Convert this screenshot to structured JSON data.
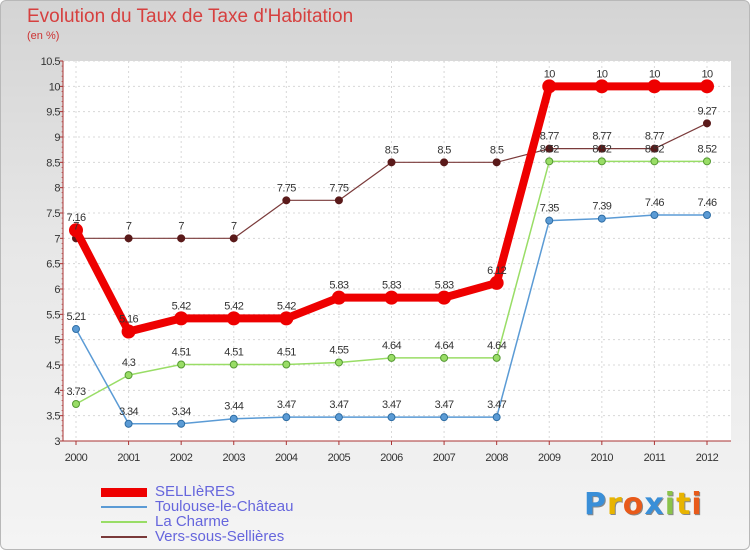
{
  "header": {
    "title": "Evolution du Taux de Taxe d'Habitation",
    "subtitle": "(en %)"
  },
  "logo": {
    "text": "Proxiti",
    "colors": [
      "#3a8fd8",
      "#e8b400",
      "#e85a1a",
      "#3a8fd8",
      "#8bc34a",
      "#e8b400",
      "#e85a1a"
    ]
  },
  "chart_data": {
    "type": "line",
    "x": [
      2000,
      2001,
      2002,
      2003,
      2004,
      2005,
      2006,
      2007,
      2008,
      2009,
      2010,
      2011,
      2012
    ],
    "ylim": [
      3,
      10.5
    ],
    "y_ticks": [
      3,
      3.5,
      4,
      4.5,
      5,
      5.5,
      6,
      6.5,
      7,
      7.5,
      8,
      8.5,
      9,
      9.5,
      10,
      10.5
    ],
    "grid": true,
    "legend_position": "bottom-left",
    "series": [
      {
        "name": "SELLIèRES",
        "color": "#ee0000",
        "values": [
          7.16,
          5.16,
          5.42,
          5.42,
          5.42,
          5.83,
          5.83,
          5.83,
          6.12,
          10,
          10,
          10,
          10
        ],
        "labels": [
          "7.16",
          "5.16",
          "5.42",
          "5.42",
          "5.42",
          "5.83",
          "5.83",
          "5.83",
          "6.12",
          "10",
          "10",
          "10",
          "10"
        ]
      },
      {
        "name": "Toulouse-le-Château",
        "color": "#5b9bd5",
        "values": [
          5.21,
          3.34,
          3.34,
          3.44,
          3.47,
          3.47,
          3.47,
          3.47,
          3.47,
          7.35,
          7.39,
          7.46,
          7.46
        ],
        "labels": [
          "5.21",
          "3.34",
          "3.34",
          "3.44",
          "3.47",
          "3.47",
          "3.47",
          "3.47",
          "3.47",
          "7.35",
          "7.39",
          "7.46",
          "7.46"
        ]
      },
      {
        "name": "La Charme",
        "color": "#99dd66",
        "values": [
          3.73,
          4.3,
          4.51,
          4.51,
          4.51,
          4.55,
          4.64,
          4.64,
          4.64,
          8.52,
          8.52,
          8.52,
          8.52
        ],
        "labels": [
          "3.73",
          "4.3",
          "4.51",
          "4.51",
          "4.51",
          "4.55",
          "4.64",
          "4.64",
          "4.64",
          "8.52",
          "8.52",
          "8.52",
          "8.52"
        ]
      },
      {
        "name": "Vers-sous-Sellières",
        "color": "#7a3a3a",
        "values": [
          7,
          7,
          7,
          7,
          7.75,
          7.75,
          8.5,
          8.5,
          8.5,
          8.77,
          8.77,
          8.77,
          9.27
        ],
        "labels": [
          "7",
          "7",
          "7",
          "7",
          "7.75",
          "7.75",
          "8.5",
          "8.5",
          "8.5",
          "8.77",
          "8.77",
          "8.77",
          "9.27"
        ]
      }
    ]
  }
}
